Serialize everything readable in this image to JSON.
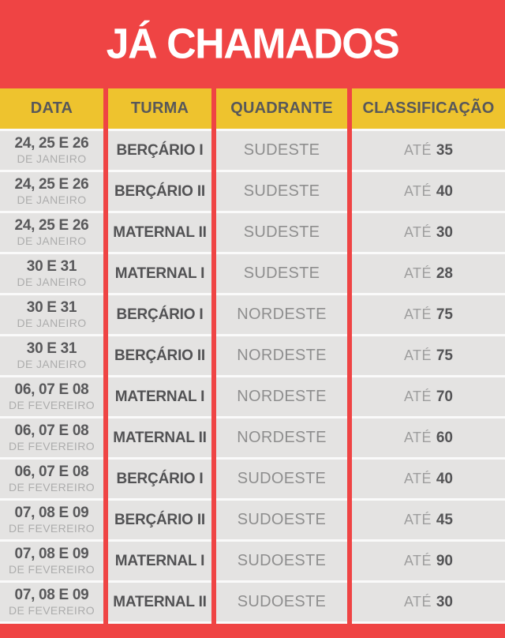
{
  "title": "JÁ CHAMADOS",
  "colors": {
    "background_red": "#EF4444",
    "header_yellow": "#EEC32E",
    "row_gray": "#E4E3E2",
    "text_dark": "#58585A",
    "text_medium": "#8E8E8E",
    "text_light": "#ACACAC",
    "title_white": "#FFFFFF"
  },
  "table": {
    "columns": [
      "DATA",
      "TURMA",
      "QUADRANTE",
      "CLASSIFICAÇÃO"
    ],
    "rows": [
      {
        "date": "24, 25 E 26",
        "date_sub": "DE JANEIRO",
        "turma": "BERÇÁRIO I",
        "quadrante": "SUDESTE",
        "limit_prefix": "ATÉ",
        "limit_value": "35"
      },
      {
        "date": "24, 25 E 26",
        "date_sub": "DE JANEIRO",
        "turma": "BERÇÁRIO II",
        "quadrante": "SUDESTE",
        "limit_prefix": "ATÉ",
        "limit_value": "40"
      },
      {
        "date": "24, 25 E 26",
        "date_sub": "DE JANEIRO",
        "turma": "MATERNAL II",
        "quadrante": "SUDESTE",
        "limit_prefix": "ATÉ",
        "limit_value": "30"
      },
      {
        "date": "30 E 31",
        "date_sub": "DE JANEIRO",
        "turma": "MATERNAL I",
        "quadrante": "SUDESTE",
        "limit_prefix": "ATÉ",
        "limit_value": "28"
      },
      {
        "date": "30 E 31",
        "date_sub": "DE JANEIRO",
        "turma": "BERÇÁRIO I",
        "quadrante": "NORDESTE",
        "limit_prefix": "ATÉ",
        "limit_value": "75"
      },
      {
        "date": "30 E 31",
        "date_sub": "DE JANEIRO",
        "turma": "BERÇÁRIO II",
        "quadrante": "NORDESTE",
        "limit_prefix": "ATÉ",
        "limit_value": "75"
      },
      {
        "date": "06, 07 E 08",
        "date_sub": "DE FEVEREIRO",
        "turma": "MATERNAL I",
        "quadrante": "NORDESTE",
        "limit_prefix": "ATÉ",
        "limit_value": "70"
      },
      {
        "date": "06, 07 E 08",
        "date_sub": "DE FEVEREIRO",
        "turma": "MATERNAL II",
        "quadrante": "NORDESTE",
        "limit_prefix": "ATÉ",
        "limit_value": "60"
      },
      {
        "date": "06, 07 E 08",
        "date_sub": "DE FEVEREIRO",
        "turma": "BERÇÁRIO I",
        "quadrante": "SUDOESTE",
        "limit_prefix": "ATÉ",
        "limit_value": "40"
      },
      {
        "date": "07, 08 E 09",
        "date_sub": "DE FEVEREIRO",
        "turma": "BERÇÁRIO II",
        "quadrante": "SUDOESTE",
        "limit_prefix": "ATÉ",
        "limit_value": "45"
      },
      {
        "date": "07, 08 E 09",
        "date_sub": "DE FEVEREIRO",
        "turma": "MATERNAL I",
        "quadrante": "SUDOESTE",
        "limit_prefix": "ATÉ",
        "limit_value": "90"
      },
      {
        "date": "07, 08 E 09",
        "date_sub": "DE FEVEREIRO",
        "turma": "MATERNAL II",
        "quadrante": "SUDOESTE",
        "limit_prefix": "ATÉ",
        "limit_value": "30"
      }
    ]
  }
}
